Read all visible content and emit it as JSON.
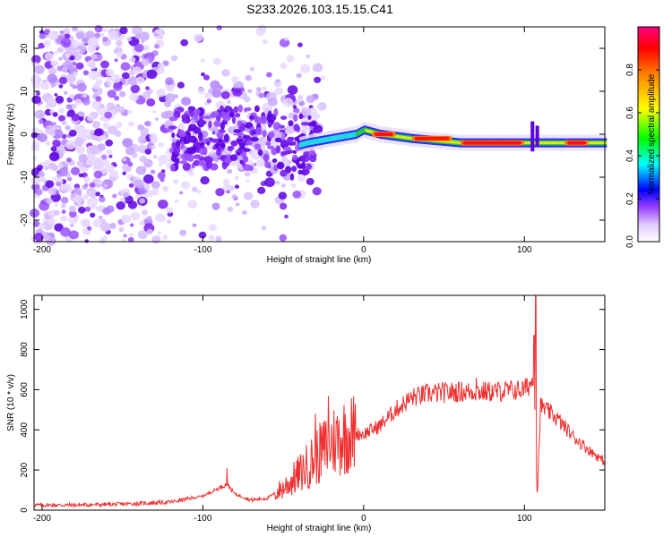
{
  "title": "S233.2026.103.15.15.C41",
  "chart_data": [
    {
      "type": "heatmap",
      "title": "S233.2026.103.15.15.C41",
      "xlabel": "Height of straight line (km)",
      "ylabel": "Frequency (Hz)",
      "xlim": [
        -205,
        150
      ],
      "ylim": [
        -25,
        25
      ],
      "xticks": [
        -200,
        -100,
        0,
        100
      ],
      "yticks": [
        -20,
        -10,
        0,
        10,
        20
      ],
      "colorbar": {
        "label": "Normalized spectral amplitude",
        "range": [
          0,
          1
        ],
        "ticks": [
          "0.0",
          "0.2",
          "0.4",
          "0.6",
          "0.8"
        ]
      },
      "ridge": {
        "x": [
          -60,
          -45,
          -35,
          -20,
          -5,
          0,
          10,
          30,
          60,
          100,
          150
        ],
        "y": [
          -1,
          -3,
          -2,
          -1,
          0,
          1,
          0,
          -1,
          -2,
          -2,
          -2
        ]
      },
      "hot_segments": [
        {
          "x0": 5,
          "x1": 20,
          "y": 0
        },
        {
          "x0": 30,
          "x1": 55,
          "y": -1
        },
        {
          "x0": 60,
          "x1": 100,
          "y": -2
        },
        {
          "x0": 125,
          "x1": 140,
          "y": -2
        }
      ],
      "spikes": [
        {
          "x": 105,
          "y0": -4,
          "y1": 3
        },
        {
          "x": 108,
          "y0": -3,
          "y1": 2
        }
      ]
    },
    {
      "type": "line",
      "xlabel": "Height of straight line (km)",
      "ylabel": "SNR (10 * v/v)",
      "xlim": [
        -205,
        150
      ],
      "ylim": [
        0,
        1070
      ],
      "xticks": [
        -200,
        -100,
        0,
        100
      ],
      "yticks": [
        0,
        200,
        400,
        600,
        800,
        1000
      ],
      "color": "#f03030",
      "series": [
        {
          "name": "SNR",
          "x": [
            -205,
            -180,
            -150,
            -120,
            -100,
            -90,
            -85,
            -80,
            -70,
            -60,
            -50,
            -40,
            -30,
            -20,
            -10,
            0,
            10,
            20,
            30,
            40,
            60,
            80,
            100,
            106,
            108,
            110,
            120,
            130,
            140,
            150
          ],
          "y": [
            25,
            25,
            30,
            40,
            70,
            110,
            130,
            80,
            50,
            60,
            110,
            180,
            260,
            340,
            380,
            380,
            420,
            500,
            560,
            580,
            590,
            590,
            600,
            650,
            60,
            520,
            460,
            370,
            300,
            240
          ]
        }
      ],
      "peaks": [
        {
          "x": 107,
          "y": 1070
        },
        {
          "x": 106,
          "y": 870
        },
        {
          "x": -85,
          "y": 210
        },
        {
          "x": -30,
          "y": 480
        },
        {
          "x": -22,
          "y": 570
        },
        {
          "x": 70,
          "y": 660
        }
      ]
    }
  ]
}
